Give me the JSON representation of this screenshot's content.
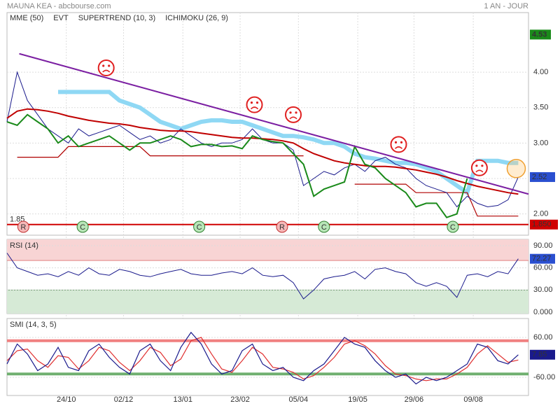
{
  "header": {
    "title": "MAUNA KEA - abcbourse.com",
    "period": "1 AN - JOUR"
  },
  "chart_data": [
    {
      "type": "line",
      "color": "#1a1a8c",
      "x": [
        0,
        1,
        2,
        3,
        4,
        5,
        6,
        7,
        8,
        9,
        10,
        11,
        12,
        13,
        14,
        15,
        16,
        17,
        18,
        19,
        20,
        21,
        22,
        23,
        24,
        25,
        26,
        27,
        28,
        29,
        30,
        31,
        32,
        33,
        34,
        35,
        36,
        37,
        38,
        39,
        40,
        41,
        42,
        43,
        44,
        45,
        46,
        47,
        48,
        49,
        50
      ],
      "values": [
        3.3,
        4.0,
        3.6,
        3.4,
        3.2,
        3.1,
        3.0,
        3.2,
        3.1,
        3.15,
        3.2,
        3.25,
        3.15,
        3.05,
        3.1,
        3.0,
        3.05,
        3.2,
        3.1,
        3.0,
        2.95,
        3.0,
        3.0,
        3.05,
        3.2,
        3.05,
        3.0,
        3.0,
        2.9,
        2.4,
        2.5,
        2.6,
        2.55,
        2.65,
        2.7,
        2.6,
        2.75,
        2.8,
        2.7,
        2.65,
        2.5,
        2.4,
        2.35,
        2.3,
        2.1,
        2.25,
        2.15,
        2.1,
        2.12,
        2.2,
        2.52
      ],
      "xlim": [
        0,
        51
      ],
      "ylim": [
        1.7,
        4.84
      ],
      "xticks": [
        {
          "value": 5.8,
          "label": "24/10"
        },
        {
          "value": 11.4,
          "label": "02/12"
        },
        {
          "value": 17.2,
          "label": "13/01"
        },
        {
          "value": 22.8,
          "label": "23/02"
        },
        {
          "value": 28.5,
          "label": "05/04"
        },
        {
          "value": 34.3,
          "label": "19/05"
        },
        {
          "value": 39.8,
          "label": "29/06"
        },
        {
          "value": 45.6,
          "label": "09/08"
        }
      ],
      "yticks": [
        {
          "value": 2,
          "label": "2.00"
        },
        {
          "value": 2.5,
          "label": "2.50"
        },
        {
          "value": 3,
          "label": "3.00"
        },
        {
          "value": 3.5,
          "label": "3.50"
        },
        {
          "value": 4,
          "label": "4.00"
        }
      ],
      "grid": true,
      "series": [
        {
          "name": "MME (50)",
          "color": "#c00000",
          "values": [
            3.35,
            3.45,
            3.48,
            3.47,
            3.45,
            3.42,
            3.38,
            3.35,
            3.32,
            3.3,
            3.28,
            3.27,
            3.25,
            3.22,
            3.2,
            3.18,
            3.17,
            3.17,
            3.16,
            3.14,
            3.12,
            3.1,
            3.08,
            3.07,
            3.07,
            3.06,
            3.05,
            3.03,
            3.0,
            2.92,
            2.85,
            2.8,
            2.75,
            2.72,
            2.7,
            2.68,
            2.67,
            2.67,
            2.66,
            2.64,
            2.62,
            2.59,
            2.56,
            2.52,
            2.47,
            2.43,
            2.39,
            2.36,
            2.33,
            2.3,
            2.28
          ]
        },
        {
          "name": "EVT",
          "color": "#b00000",
          "values": [
            null,
            2.8,
            2.8,
            2.8,
            2.8,
            2.8,
            2.95,
            2.95,
            2.95,
            2.95,
            2.95,
            2.95,
            2.95,
            2.95,
            2.82,
            2.82,
            2.82,
            2.82,
            2.82,
            2.82,
            2.82,
            2.82,
            2.82,
            2.82,
            2.82,
            2.82,
            2.82,
            2.82,
            2.82,
            2.82,
            null,
            null,
            null,
            null,
            2.42,
            2.42,
            2.42,
            2.42,
            2.42,
            2.42,
            2.3,
            2.3,
            2.3,
            2.3,
            2.3,
            2.3,
            1.97,
            1.97,
            1.97,
            1.97,
            1.97
          ]
        },
        {
          "name": "SUPERTREND (10, 3)",
          "color": "#1a8a1a",
          "values": [
            3.3,
            3.25,
            3.4,
            3.3,
            3.2,
            3.0,
            3.1,
            2.95,
            3.0,
            3.05,
            3.1,
            3.0,
            2.9,
            3.0,
            3.0,
            3.05,
            3.1,
            3.05,
            2.95,
            2.98,
            2.98,
            2.95,
            2.96,
            2.92,
            3.1,
            3.05,
            3.02,
            3.0,
            2.85,
            2.7,
            2.25,
            2.35,
            2.4,
            2.45,
            2.95,
            2.7,
            2.65,
            2.5,
            2.4,
            2.3,
            2.1,
            2.15,
            2.15,
            1.95,
            2.0,
            2.5,
            null,
            null,
            null,
            null,
            null
          ]
        },
        {
          "name": "ICHIMOKU (26, 9)",
          "color": "#2a4fd0",
          "values": [
            null,
            null,
            null,
            null,
            null,
            3.72,
            3.72,
            3.72,
            3.72,
            3.72,
            3.72,
            3.6,
            3.55,
            3.5,
            3.4,
            3.3,
            3.25,
            3.2,
            3.25,
            3.3,
            3.32,
            3.32,
            3.3,
            3.3,
            3.25,
            3.2,
            3.15,
            3.1,
            3.1,
            3.08,
            3.05,
            3.0,
            3.0,
            2.95,
            2.85,
            2.8,
            2.78,
            2.75,
            2.72,
            2.72,
            2.7,
            2.65,
            2.6,
            2.5,
            2.4,
            2.3,
            2.75,
            2.75,
            2.75,
            2.72,
            2.72
          ]
        }
      ],
      "trendline": {
        "x": [
          1.2,
          51
        ],
        "values": [
          4.26,
          2.28
        ],
        "color": "#7b1fa2"
      },
      "support": {
        "value": 1.85,
        "label": "1.85",
        "badge": "1.850",
        "color": "#d00000"
      },
      "high": {
        "value": 4.53,
        "label": "4.53",
        "color": "#1a8a1a"
      },
      "last": {
        "value": 2.52,
        "label": "2.52",
        "color": "#2a4fd0"
      },
      "signals": [
        {
          "x": 1.6,
          "label": "R"
        },
        {
          "x": 7.4,
          "label": "C"
        },
        {
          "x": 18.8,
          "label": "C"
        },
        {
          "x": 26.9,
          "label": "R"
        },
        {
          "x": 31,
          "label": "C"
        },
        {
          "x": 43.6,
          "label": "C"
        }
      ],
      "sad_faces": [
        {
          "x": 9.7,
          "value": 4.06
        },
        {
          "x": 24.2,
          "value": 3.54
        },
        {
          "x": 28,
          "value": 3.4
        },
        {
          "x": 38.3,
          "value": 2.98
        },
        {
          "x": 46.2,
          "value": 2.65
        }
      ],
      "highlight": {
        "x": 49.8,
        "value": 2.64
      }
    },
    {
      "type": "line",
      "title": "RSI (14)",
      "color": "#1a1a8c",
      "x": [
        0,
        1,
        2,
        3,
        4,
        5,
        6,
        7,
        8,
        9,
        10,
        11,
        12,
        13,
        14,
        15,
        16,
        17,
        18,
        19,
        20,
        21,
        22,
        23,
        24,
        25,
        26,
        27,
        28,
        29,
        30,
        31,
        32,
        33,
        34,
        35,
        36,
        37,
        38,
        39,
        40,
        41,
        42,
        43,
        44,
        45,
        46,
        47,
        48,
        49,
        50
      ],
      "values": [
        80,
        60,
        55,
        50,
        52,
        48,
        55,
        50,
        60,
        52,
        50,
        58,
        55,
        50,
        48,
        52,
        55,
        58,
        52,
        50,
        50,
        53,
        55,
        52,
        60,
        50,
        48,
        50,
        40,
        18,
        30,
        45,
        48,
        50,
        55,
        45,
        58,
        60,
        55,
        52,
        40,
        35,
        40,
        35,
        20,
        50,
        52,
        48,
        55,
        52,
        72.27
      ],
      "xlim": [
        0,
        51
      ],
      "ylim": [
        -1.9,
        98.5
      ],
      "yticks": [
        {
          "value": 0,
          "label": "0.000"
        },
        {
          "value": 30,
          "label": "30.00"
        },
        {
          "value": 60,
          "label": "60.00"
        },
        {
          "value": 90,
          "label": "90.00"
        }
      ],
      "upper": 70,
      "lower": 30,
      "grid": true,
      "last": {
        "value": 72.27,
        "label": "72.27",
        "color": "#2a4fd0"
      }
    },
    {
      "type": "line",
      "title": "SMI (14, 3, 5)",
      "x": [
        0,
        1,
        2,
        3,
        4,
        5,
        6,
        7,
        8,
        9,
        10,
        11,
        12,
        13,
        14,
        15,
        16,
        17,
        18,
        19,
        20,
        21,
        22,
        23,
        24,
        25,
        26,
        27,
        28,
        29,
        30,
        31,
        32,
        33,
        34,
        35,
        36,
        37,
        38,
        39,
        40,
        41,
        42,
        43,
        44,
        45,
        46,
        47,
        48,
        49,
        50
      ],
      "series": [
        {
          "color": "#1a1a8c",
          "values": [
            -20,
            40,
            10,
            -40,
            -20,
            30,
            -30,
            -40,
            20,
            40,
            0,
            -30,
            -50,
            20,
            40,
            -10,
            -40,
            30,
            75,
            40,
            -20,
            -50,
            -40,
            20,
            40,
            -20,
            -40,
            -30,
            -60,
            -70,
            -40,
            -20,
            20,
            60,
            40,
            30,
            -10,
            -40,
            -60,
            -50,
            -80,
            -60,
            -70,
            -60,
            -40,
            -20,
            40,
            30,
            -10,
            -20,
            7.85
          ]
        },
        {
          "color": "#e03030",
          "values": [
            -10,
            20,
            25,
            -10,
            -30,
            5,
            0,
            -35,
            -10,
            30,
            20,
            -15,
            -40,
            -10,
            30,
            15,
            -25,
            -5,
            50,
            60,
            10,
            -35,
            -45,
            -10,
            30,
            10,
            -30,
            -35,
            -45,
            -65,
            -55,
            -30,
            0,
            40,
            50,
            35,
            10,
            -25,
            -50,
            -55,
            -65,
            -70,
            -65,
            -65,
            -50,
            -30,
            10,
            35,
            10,
            -15,
            -8
          ]
        }
      ],
      "xlim": [
        0,
        51
      ],
      "ylim": [
        -114.7,
        116.8
      ],
      "yticks": [
        {
          "value": -60,
          "label": "-60.00"
        },
        {
          "value": 60,
          "label": "60.00"
        }
      ],
      "upper": 50,
      "lower": -50,
      "grid": true,
      "last": {
        "value": 7.85,
        "label": "7.85",
        "color": "#1a1a8c"
      }
    }
  ]
}
